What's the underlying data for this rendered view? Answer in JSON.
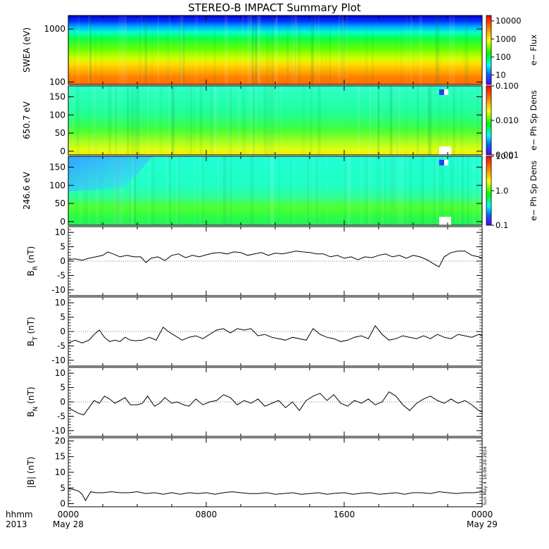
{
  "title": "STEREO-B IMPACT Summary Plot",
  "x_axis": {
    "row1_labels": [
      "0000",
      "0800",
      "1600",
      "0000"
    ],
    "row2_labels": [
      "May 28",
      "May 29"
    ],
    "corner_label_1": "hhmm",
    "corner_label_2": "2013"
  },
  "timestamp": "Sun May  4 16:06:20 2014",
  "chart_data": [
    {
      "type": "heatmap",
      "name": "swea",
      "ylabel": "SWEA (eV)",
      "yscale": "log",
      "ylim": [
        90,
        1800
      ],
      "yticks": [
        "1000",
        "100"
      ],
      "colorbar": {
        "label": "e− Flux",
        "scale": "log",
        "range": [
          3,
          20000
        ],
        "ticks": [
          "10000",
          "1000",
          "100",
          "10"
        ]
      }
    },
    {
      "type": "heatmap",
      "name": "pad650",
      "ylabel": "650.7 eV",
      "ylim": [
        -10,
        180
      ],
      "yticks": [
        "150",
        "100",
        "50",
        "0"
      ],
      "colorbar": {
        "label": "e− Ph Sp Dens",
        "scale": "log",
        "range": [
          0.001,
          0.1
        ],
        "ticks": [
          "0.100",
          "0.010",
          "0.001"
        ]
      }
    },
    {
      "type": "heatmap",
      "name": "pad246",
      "ylabel": "246.6 eV",
      "ylim": [
        -10,
        180
      ],
      "yticks": [
        "150",
        "100",
        "50",
        "0"
      ],
      "colorbar": {
        "label": "e− Ph Sp Dens",
        "scale": "log",
        "range": [
          0.1,
          10
        ],
        "ticks": [
          "10.0",
          "1.0",
          "0.1"
        ]
      }
    },
    {
      "type": "line",
      "name": "br",
      "ylabel": "B_R (nT)",
      "ylim": [
        -12,
        12
      ],
      "yticks": [
        "10",
        "5",
        "0",
        "-5",
        "-10"
      ],
      "x_hours": [
        0.0,
        0.4,
        0.8,
        1.2,
        1.6,
        2.0,
        2.3,
        2.6,
        3.0,
        3.4,
        3.8,
        4.2,
        4.5,
        4.8,
        5.2,
        5.6,
        6.0,
        6.4,
        6.8,
        7.2,
        7.6,
        8.0,
        8.4,
        8.8,
        9.2,
        9.6,
        10.0,
        10.4,
        10.8,
        11.2,
        11.6,
        12.0,
        12.4,
        12.8,
        13.2,
        13.6,
        14.0,
        14.4,
        14.8,
        15.2,
        15.6,
        16.0,
        16.4,
        16.8,
        17.2,
        17.6,
        18.0,
        18.4,
        18.8,
        19.2,
        19.6,
        20.0,
        20.4,
        20.8,
        21.2,
        21.5,
        21.8,
        22.2,
        22.6,
        23.0,
        23.4,
        23.8,
        24.0
      ],
      "y": [
        0.5,
        0.8,
        0.3,
        1.0,
        1.5,
        2.0,
        3.2,
        2.5,
        1.5,
        2.0,
        1.5,
        1.5,
        -0.5,
        1.0,
        1.5,
        0.2,
        2.0,
        2.5,
        1.2,
        2.0,
        1.5,
        2.2,
        2.8,
        3.0,
        2.5,
        3.2,
        3.0,
        2.0,
        2.5,
        3.0,
        2.0,
        2.8,
        2.5,
        3.0,
        3.5,
        3.2,
        3.0,
        2.5,
        2.5,
        1.5,
        2.0,
        1.0,
        1.5,
        0.5,
        1.5,
        1.2,
        2.0,
        2.5,
        1.5,
        2.0,
        1.0,
        2.0,
        1.5,
        0.5,
        -1.0,
        -2.0,
        1.5,
        3.0,
        3.5,
        3.5,
        2.0,
        1.5,
        1.0
      ]
    },
    {
      "type": "line",
      "name": "bt",
      "ylabel": "B_T (nT)",
      "ylim": [
        -12,
        12
      ],
      "yticks": [
        "10",
        "5",
        "0",
        "-5",
        "-10"
      ],
      "x_hours": [
        0.0,
        0.4,
        0.8,
        1.2,
        1.5,
        1.8,
        2.1,
        2.4,
        2.7,
        3.0,
        3.3,
        3.6,
        3.9,
        4.3,
        4.7,
        5.1,
        5.5,
        5.8,
        6.2,
        6.6,
        7.0,
        7.4,
        7.8,
        8.2,
        8.6,
        9.0,
        9.4,
        9.8,
        10.2,
        10.6,
        11.0,
        11.4,
        11.8,
        12.2,
        12.6,
        13.0,
        13.4,
        13.8,
        14.2,
        14.6,
        15.0,
        15.4,
        15.8,
        16.2,
        16.6,
        17.0,
        17.4,
        17.8,
        18.2,
        18.6,
        19.0,
        19.4,
        19.8,
        20.2,
        20.6,
        21.0,
        21.4,
        21.8,
        22.2,
        22.6,
        23.0,
        23.4,
        23.8,
        24.0
      ],
      "y": [
        -4.0,
        -3.0,
        -4.0,
        -3.0,
        -1.0,
        0.5,
        -2.0,
        -3.5,
        -3.0,
        -3.5,
        -2.0,
        -3.0,
        -3.2,
        -3.0,
        -2.0,
        -3.0,
        1.5,
        0.0,
        -1.5,
        -3.0,
        -2.0,
        -1.5,
        -2.5,
        -1.0,
        0.5,
        1.0,
        -0.5,
        1.0,
        0.5,
        1.0,
        -1.5,
        -1.0,
        -2.0,
        -2.5,
        -3.0,
        -2.0,
        -2.5,
        -3.0,
        1.0,
        -1.0,
        -2.0,
        -2.5,
        -3.5,
        -3.0,
        -2.0,
        -1.5,
        -2.5,
        2.0,
        -1.0,
        -3.0,
        -2.5,
        -1.5,
        -2.0,
        -2.5,
        -1.5,
        -2.5,
        -1.0,
        -2.0,
        -2.5,
        -1.0,
        -1.5,
        -2.0,
        -1.0,
        -1.5
      ]
    },
    {
      "type": "line",
      "name": "bn",
      "ylabel": "B_N (nT)",
      "ylim": [
        -12,
        12
      ],
      "yticks": [
        "10",
        "5",
        "0",
        "-5",
        "-10"
      ],
      "x_hours": [
        0.0,
        0.3,
        0.6,
        0.9,
        1.2,
        1.5,
        1.8,
        2.1,
        2.4,
        2.7,
        3.0,
        3.3,
        3.6,
        4.0,
        4.3,
        4.6,
        5.0,
        5.3,
        5.6,
        6.0,
        6.3,
        6.7,
        7.0,
        7.4,
        7.8,
        8.2,
        8.6,
        9.0,
        9.4,
        9.8,
        10.2,
        10.6,
        11.0,
        11.4,
        11.8,
        12.2,
        12.6,
        13.0,
        13.4,
        13.8,
        14.2,
        14.6,
        15.0,
        15.4,
        15.8,
        16.2,
        16.6,
        17.0,
        17.4,
        17.8,
        18.2,
        18.6,
        19.0,
        19.4,
        19.8,
        20.2,
        20.6,
        21.0,
        21.4,
        21.8,
        22.2,
        22.6,
        23.0,
        23.4,
        23.8,
        24.0
      ],
      "y": [
        -2.0,
        -3.0,
        -4.0,
        -4.5,
        -2.0,
        0.5,
        -0.5,
        2.0,
        1.0,
        -0.5,
        0.5,
        1.5,
        -1.0,
        -1.0,
        -0.5,
        2.0,
        -1.5,
        -0.5,
        1.5,
        -0.5,
        0.0,
        -1.0,
        -1.5,
        1.0,
        -1.0,
        0.0,
        0.5,
        2.5,
        1.5,
        -1.0,
        0.5,
        -0.5,
        1.0,
        -1.5,
        -0.5,
        0.5,
        -2.0,
        0.0,
        -3.0,
        0.5,
        2.0,
        3.0,
        0.5,
        2.5,
        -0.5,
        -1.5,
        0.5,
        -0.5,
        1.0,
        -1.0,
        0.0,
        3.5,
        2.0,
        -1.0,
        -3.0,
        -0.5,
        1.0,
        2.0,
        0.5,
        -0.5,
        1.0,
        -0.5,
        0.5,
        -1.0,
        -3.0,
        -3.5
      ]
    },
    {
      "type": "line",
      "name": "bmag",
      "ylabel": "|B| (nT)",
      "ylim": [
        -1,
        21
      ],
      "yticks": [
        "20",
        "15",
        "10",
        "5",
        "0"
      ],
      "x_hours": [
        0.0,
        0.3,
        0.6,
        0.8,
        1.0,
        1.3,
        1.6,
        2.0,
        2.5,
        3.0,
        3.5,
        4.0,
        4.5,
        5.0,
        5.5,
        6.0,
        6.5,
        7.0,
        7.5,
        8.0,
        8.5,
        9.0,
        9.5,
        10.0,
        10.5,
        11.0,
        11.5,
        12.0,
        12.5,
        13.0,
        13.5,
        14.0,
        14.5,
        15.0,
        15.5,
        16.0,
        16.5,
        17.0,
        17.5,
        18.0,
        18.5,
        19.0,
        19.5,
        20.0,
        20.5,
        21.0,
        21.5,
        22.0,
        22.5,
        23.0,
        23.5,
        24.0
      ],
      "y": [
        4.8,
        4.5,
        4.0,
        3.0,
        1.0,
        3.8,
        3.5,
        3.5,
        3.8,
        3.5,
        3.5,
        3.8,
        3.2,
        3.5,
        3.0,
        3.5,
        3.0,
        3.5,
        3.2,
        3.5,
        3.0,
        3.5,
        3.8,
        3.5,
        3.2,
        3.2,
        3.5,
        3.0,
        3.2,
        3.5,
        3.0,
        3.2,
        3.5,
        3.0,
        3.3,
        3.5,
        3.0,
        3.3,
        3.5,
        3.0,
        3.2,
        3.5,
        3.0,
        3.5,
        3.5,
        3.2,
        3.8,
        3.5,
        3.2,
        3.5,
        3.5,
        3.8
      ]
    }
  ]
}
